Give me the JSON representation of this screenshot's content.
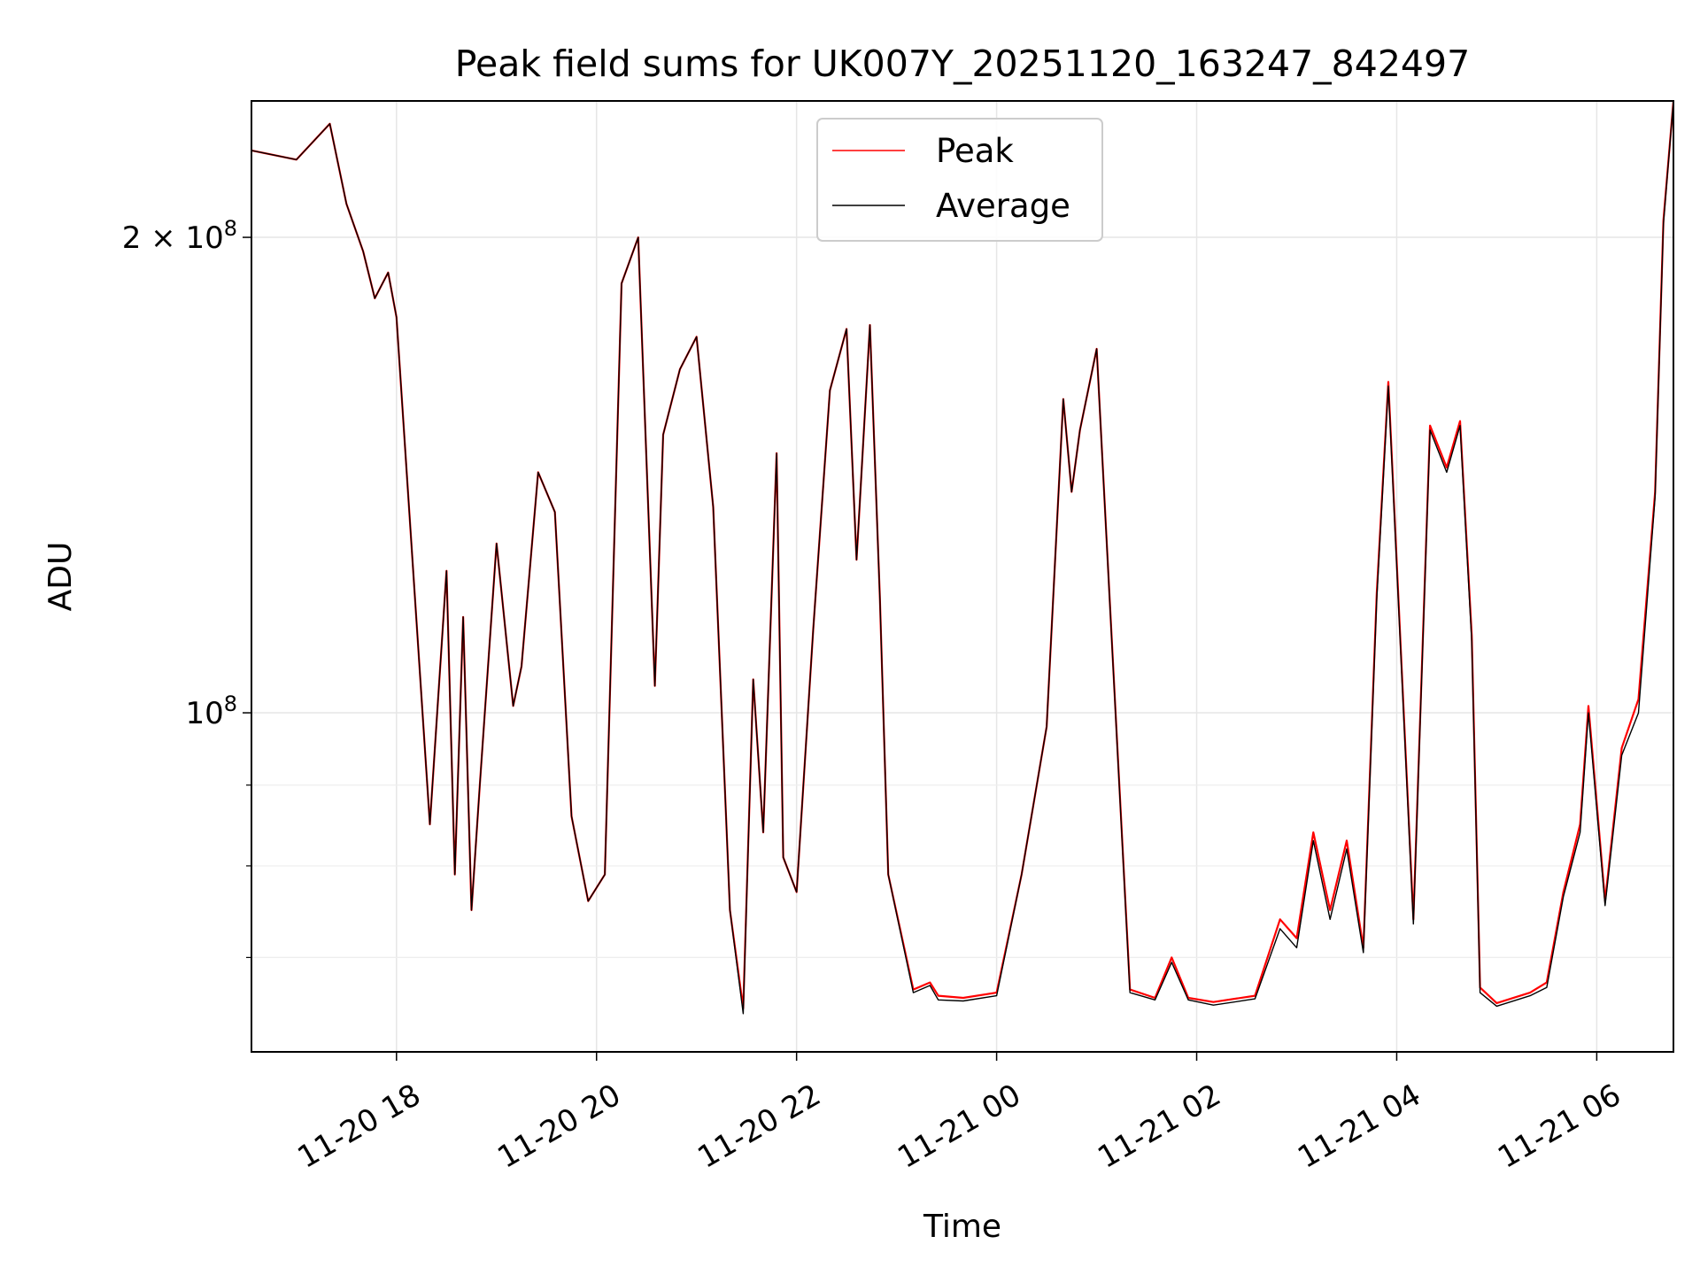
{
  "chart_data": {
    "type": "line",
    "title": "Peak field sums for UK007Y_20251120_163247_842497",
    "xlabel": "Time",
    "ylabel": "ADU",
    "yscale": "log",
    "xlim": [
      "2025-11-20 16:33",
      "2025-11-21 06:46"
    ],
    "ylim": [
      61000000,
      244000000
    ],
    "x_ticks": [
      "11-20 18",
      "11-20 20",
      "11-20 22",
      "11-21 00",
      "11-21 02",
      "11-21 04",
      "11-21 06"
    ],
    "y_ticks": [
      {
        "value": 100000000,
        "base": "10",
        "exp": "8",
        "coef": ""
      },
      {
        "value": 200000000,
        "base": "10",
        "exp": "8",
        "coef": "2 × "
      }
    ],
    "grid": true,
    "legend_position": "top-center",
    "series": [
      {
        "name": "Peak",
        "color": "#ff0000",
        "x": [
          "2025-11-20 16:33",
          "2025-11-20 17:00",
          "2025-11-20 17:20",
          "2025-11-20 17:30",
          "2025-11-20 17:40",
          "2025-11-20 17:47",
          "2025-11-20 17:55",
          "2025-11-20 18:00",
          "2025-11-20 18:20",
          "2025-11-20 18:30",
          "2025-11-20 18:35",
          "2025-11-20 18:40",
          "2025-11-20 18:45",
          "2025-11-20 18:50",
          "2025-11-20 19:00",
          "2025-11-20 19:10",
          "2025-11-20 19:15",
          "2025-11-20 19:25",
          "2025-11-20 19:35",
          "2025-11-20 19:45",
          "2025-11-20 19:55",
          "2025-11-20 20:05",
          "2025-11-20 20:15",
          "2025-11-20 20:25",
          "2025-11-20 20:35",
          "2025-11-20 20:40",
          "2025-11-20 20:50",
          "2025-11-20 21:00",
          "2025-11-20 21:10",
          "2025-11-20 21:20",
          "2025-11-20 21:28",
          "2025-11-20 21:34",
          "2025-11-20 21:40",
          "2025-11-20 21:48",
          "2025-11-20 21:52",
          "2025-11-20 22:00",
          "2025-11-20 22:10",
          "2025-11-20 22:20",
          "2025-11-20 22:30",
          "2025-11-20 22:36",
          "2025-11-20 22:44",
          "2025-11-20 22:50",
          "2025-11-20 22:55",
          "2025-11-20 23:10",
          "2025-11-20 23:20",
          "2025-11-20 23:25",
          "2025-11-20 23:40",
          "2025-11-21 00:00",
          "2025-11-21 00:15",
          "2025-11-21 00:30",
          "2025-11-21 00:40",
          "2025-11-21 00:45",
          "2025-11-21 00:50",
          "2025-11-21 01:00",
          "2025-11-21 01:20",
          "2025-11-21 01:35",
          "2025-11-21 01:45",
          "2025-11-21 01:55",
          "2025-11-21 02:10",
          "2025-11-21 02:35",
          "2025-11-21 02:50",
          "2025-11-21 03:00",
          "2025-11-21 03:10",
          "2025-11-21 03:20",
          "2025-11-21 03:30",
          "2025-11-21 03:40",
          "2025-11-21 03:48",
          "2025-11-21 03:55",
          "2025-11-21 04:10",
          "2025-11-21 04:20",
          "2025-11-21 04:30",
          "2025-11-21 04:38",
          "2025-11-21 04:45",
          "2025-11-21 04:50",
          "2025-11-21 05:00",
          "2025-11-21 05:20",
          "2025-11-21 05:30",
          "2025-11-21 05:40",
          "2025-11-21 05:50",
          "2025-11-21 05:55",
          "2025-11-21 06:05",
          "2025-11-21 06:15",
          "2025-11-21 06:25",
          "2025-11-21 06:35",
          "2025-11-21 06:40",
          "2025-11-21 06:46"
        ],
        "y": [
          227000000,
          224000000,
          236000000,
          210000000,
          196000000,
          183000000,
          190000000,
          178000000,
          85000000,
          123000000,
          79000000,
          115000000,
          75000000,
          90000000,
          128000000,
          101000000,
          107000000,
          142000000,
          134000000,
          86000000,
          76000000,
          79000000,
          187000000,
          200000000,
          104000000,
          150000000,
          165000000,
          173000000,
          135000000,
          75000000,
          65000000,
          105000000,
          84000000,
          146000000,
          81000000,
          77000000,
          113000000,
          160000000,
          175000000,
          125000000,
          176000000,
          118000000,
          79000000,
          66800000,
          67500000,
          66200000,
          66000000,
          66500000,
          79000000,
          98000000,
          158000000,
          138000000,
          151000000,
          170000000,
          66800000,
          66000000,
          70000000,
          66000000,
          65600000,
          66200000,
          74000000,
          72000000,
          84000000,
          75000000,
          83000000,
          71000000,
          119000000,
          162000000,
          74000000,
          152000000,
          143000000,
          153000000,
          112000000,
          67000000,
          65500000,
          66500000,
          67500000,
          77000000,
          85000000,
          101000000,
          76000000,
          95000000,
          102000000,
          138000000,
          205000000,
          244000000
        ]
      },
      {
        "name": "Average",
        "color": "#000000",
        "x": [
          "2025-11-20 16:33",
          "2025-11-20 17:00",
          "2025-11-20 17:20",
          "2025-11-20 17:30",
          "2025-11-20 17:40",
          "2025-11-20 17:47",
          "2025-11-20 17:55",
          "2025-11-20 18:00",
          "2025-11-20 18:20",
          "2025-11-20 18:30",
          "2025-11-20 18:35",
          "2025-11-20 18:40",
          "2025-11-20 18:45",
          "2025-11-20 18:50",
          "2025-11-20 19:00",
          "2025-11-20 19:10",
          "2025-11-20 19:15",
          "2025-11-20 19:25",
          "2025-11-20 19:35",
          "2025-11-20 19:45",
          "2025-11-20 19:55",
          "2025-11-20 20:05",
          "2025-11-20 20:15",
          "2025-11-20 20:25",
          "2025-11-20 20:35",
          "2025-11-20 20:40",
          "2025-11-20 20:50",
          "2025-11-20 21:00",
          "2025-11-20 21:10",
          "2025-11-20 21:20",
          "2025-11-20 21:28",
          "2025-11-20 21:34",
          "2025-11-20 21:40",
          "2025-11-20 21:48",
          "2025-11-20 21:52",
          "2025-11-20 22:00",
          "2025-11-20 22:10",
          "2025-11-20 22:20",
          "2025-11-20 22:30",
          "2025-11-20 22:36",
          "2025-11-20 22:44",
          "2025-11-20 22:50",
          "2025-11-20 22:55",
          "2025-11-20 23:10",
          "2025-11-20 23:20",
          "2025-11-20 23:25",
          "2025-11-20 23:40",
          "2025-11-21 00:00",
          "2025-11-21 00:15",
          "2025-11-21 00:30",
          "2025-11-21 00:40",
          "2025-11-21 00:45",
          "2025-11-21 00:50",
          "2025-11-21 01:00",
          "2025-11-21 01:20",
          "2025-11-21 01:35",
          "2025-11-21 01:45",
          "2025-11-21 01:55",
          "2025-11-21 02:10",
          "2025-11-21 02:35",
          "2025-11-21 02:50",
          "2025-11-21 03:00",
          "2025-11-21 03:10",
          "2025-11-21 03:20",
          "2025-11-21 03:30",
          "2025-11-21 03:40",
          "2025-11-21 03:48",
          "2025-11-21 03:55",
          "2025-11-21 04:10",
          "2025-11-21 04:20",
          "2025-11-21 04:30",
          "2025-11-21 04:38",
          "2025-11-21 04:45",
          "2025-11-21 04:50",
          "2025-11-21 05:00",
          "2025-11-21 05:20",
          "2025-11-21 05:30",
          "2025-11-21 05:40",
          "2025-11-21 05:50",
          "2025-11-21 05:55",
          "2025-11-21 06:05",
          "2025-11-21 06:15",
          "2025-11-21 06:25",
          "2025-11-21 06:35",
          "2025-11-21 06:40",
          "2025-11-21 06:46"
        ],
        "y": [
          227000000,
          224000000,
          236000000,
          210000000,
          196000000,
          183000000,
          190000000,
          178000000,
          85000000,
          123000000,
          79000000,
          115000000,
          75000000,
          90000000,
          128000000,
          101000000,
          107000000,
          142000000,
          134000000,
          86000000,
          76000000,
          79000000,
          187000000,
          200000000,
          104000000,
          150000000,
          165000000,
          173000000,
          135000000,
          75000000,
          64500000,
          105000000,
          84000000,
          146000000,
          81000000,
          77000000,
          113000000,
          160000000,
          175000000,
          125000000,
          176000000,
          118000000,
          79000000,
          66500000,
          67200000,
          65800000,
          65700000,
          66200000,
          79000000,
          98000000,
          158000000,
          138000000,
          151000000,
          170000000,
          66500000,
          65800000,
          69500000,
          65800000,
          65300000,
          65900000,
          73000000,
          71000000,
          83000000,
          74000000,
          82000000,
          70500000,
          118000000,
          161000000,
          73500000,
          151000000,
          142000000,
          152000000,
          111000000,
          66500000,
          65200000,
          66200000,
          67000000,
          76500000,
          84000000,
          100000000,
          75500000,
          94000000,
          100000000,
          137000000,
          204000000,
          244000000
        ]
      }
    ]
  }
}
